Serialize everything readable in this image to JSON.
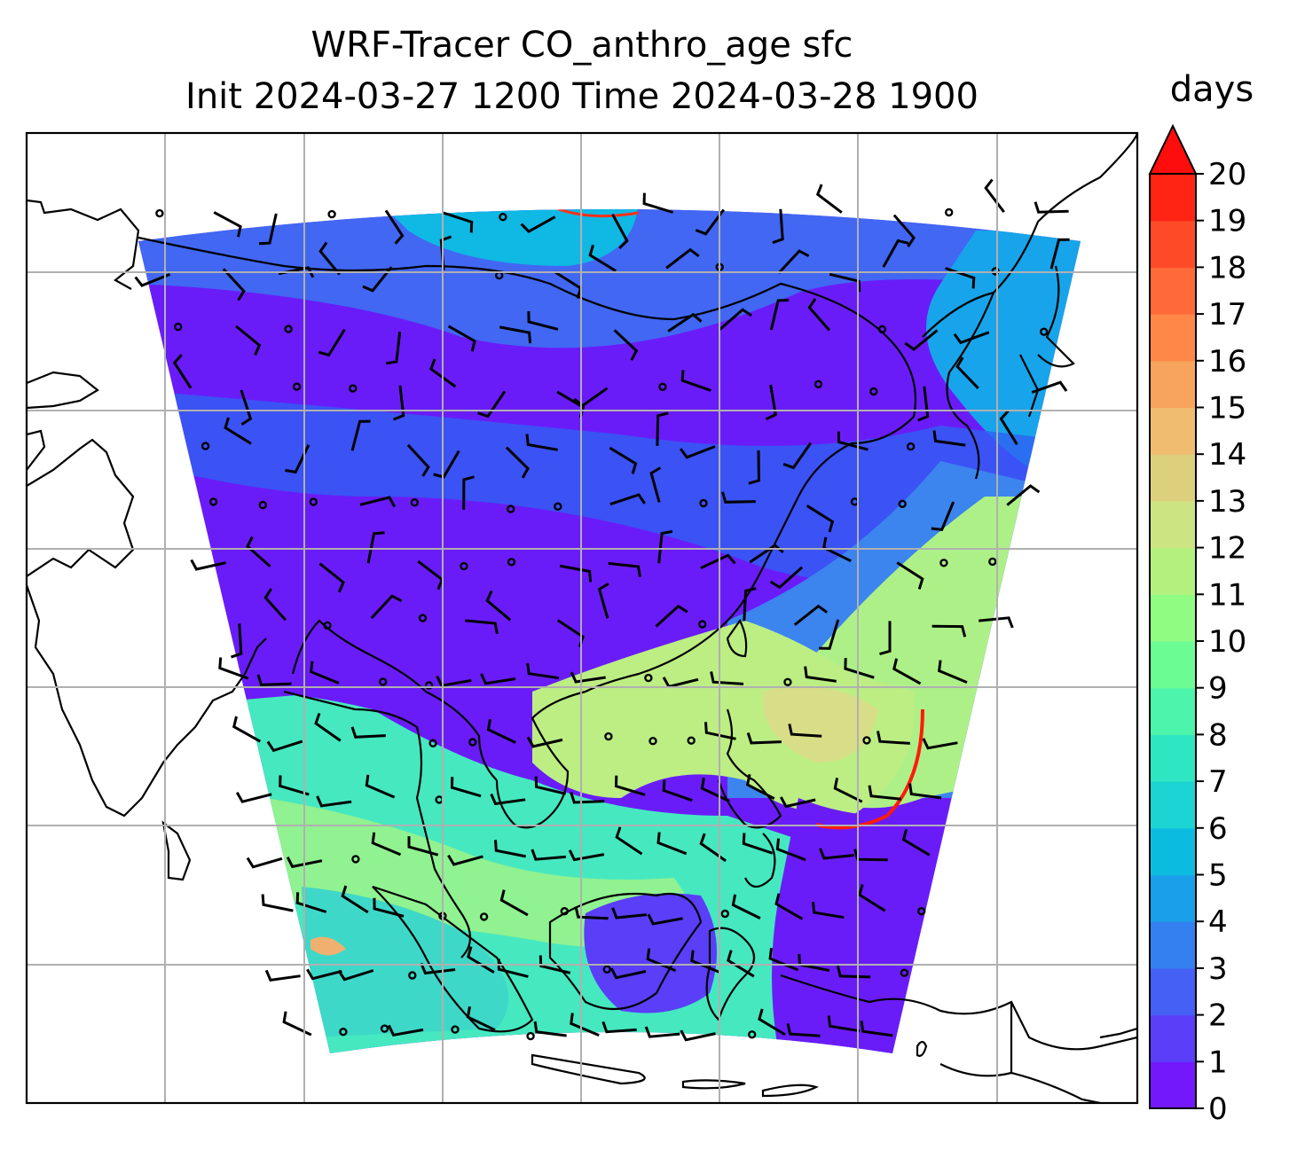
{
  "title_line1": "WRF-Tracer CO_anthro_age sfc",
  "title_line2": "Init 2024-03-27 1200 Time 2024-03-28 1900",
  "colorbar": {
    "label": "days",
    "ticks": [
      "0",
      "1",
      "2",
      "3",
      "4",
      "5",
      "6",
      "7",
      "8",
      "9",
      "10",
      "11",
      "12",
      "13",
      "14",
      "15",
      "16",
      "17",
      "18",
      "19",
      "20"
    ],
    "extend": "max",
    "colors": [
      "#7218fa",
      "#5a3ef8",
      "#4460f5",
      "#3580f0",
      "#1aa0ea",
      "#0cbce0",
      "#1cd4d4",
      "#2ee6c2",
      "#4cf4ac",
      "#6cfc94",
      "#90fc82",
      "#b4f07e",
      "#cce482",
      "#dcd07c",
      "#f0bc70",
      "#f8a45c",
      "#ff8848",
      "#ff6a38",
      "#ff4a28",
      "#ff2414",
      "#ff0d0d"
    ]
  },
  "map": {
    "gridlines": "on",
    "coastlines": "on",
    "wind_barbs": "on",
    "field_low_color": "#6a1cf8",
    "field_mid_color": "#3a6ef2",
    "field_high_color": "#b8ec80"
  }
}
